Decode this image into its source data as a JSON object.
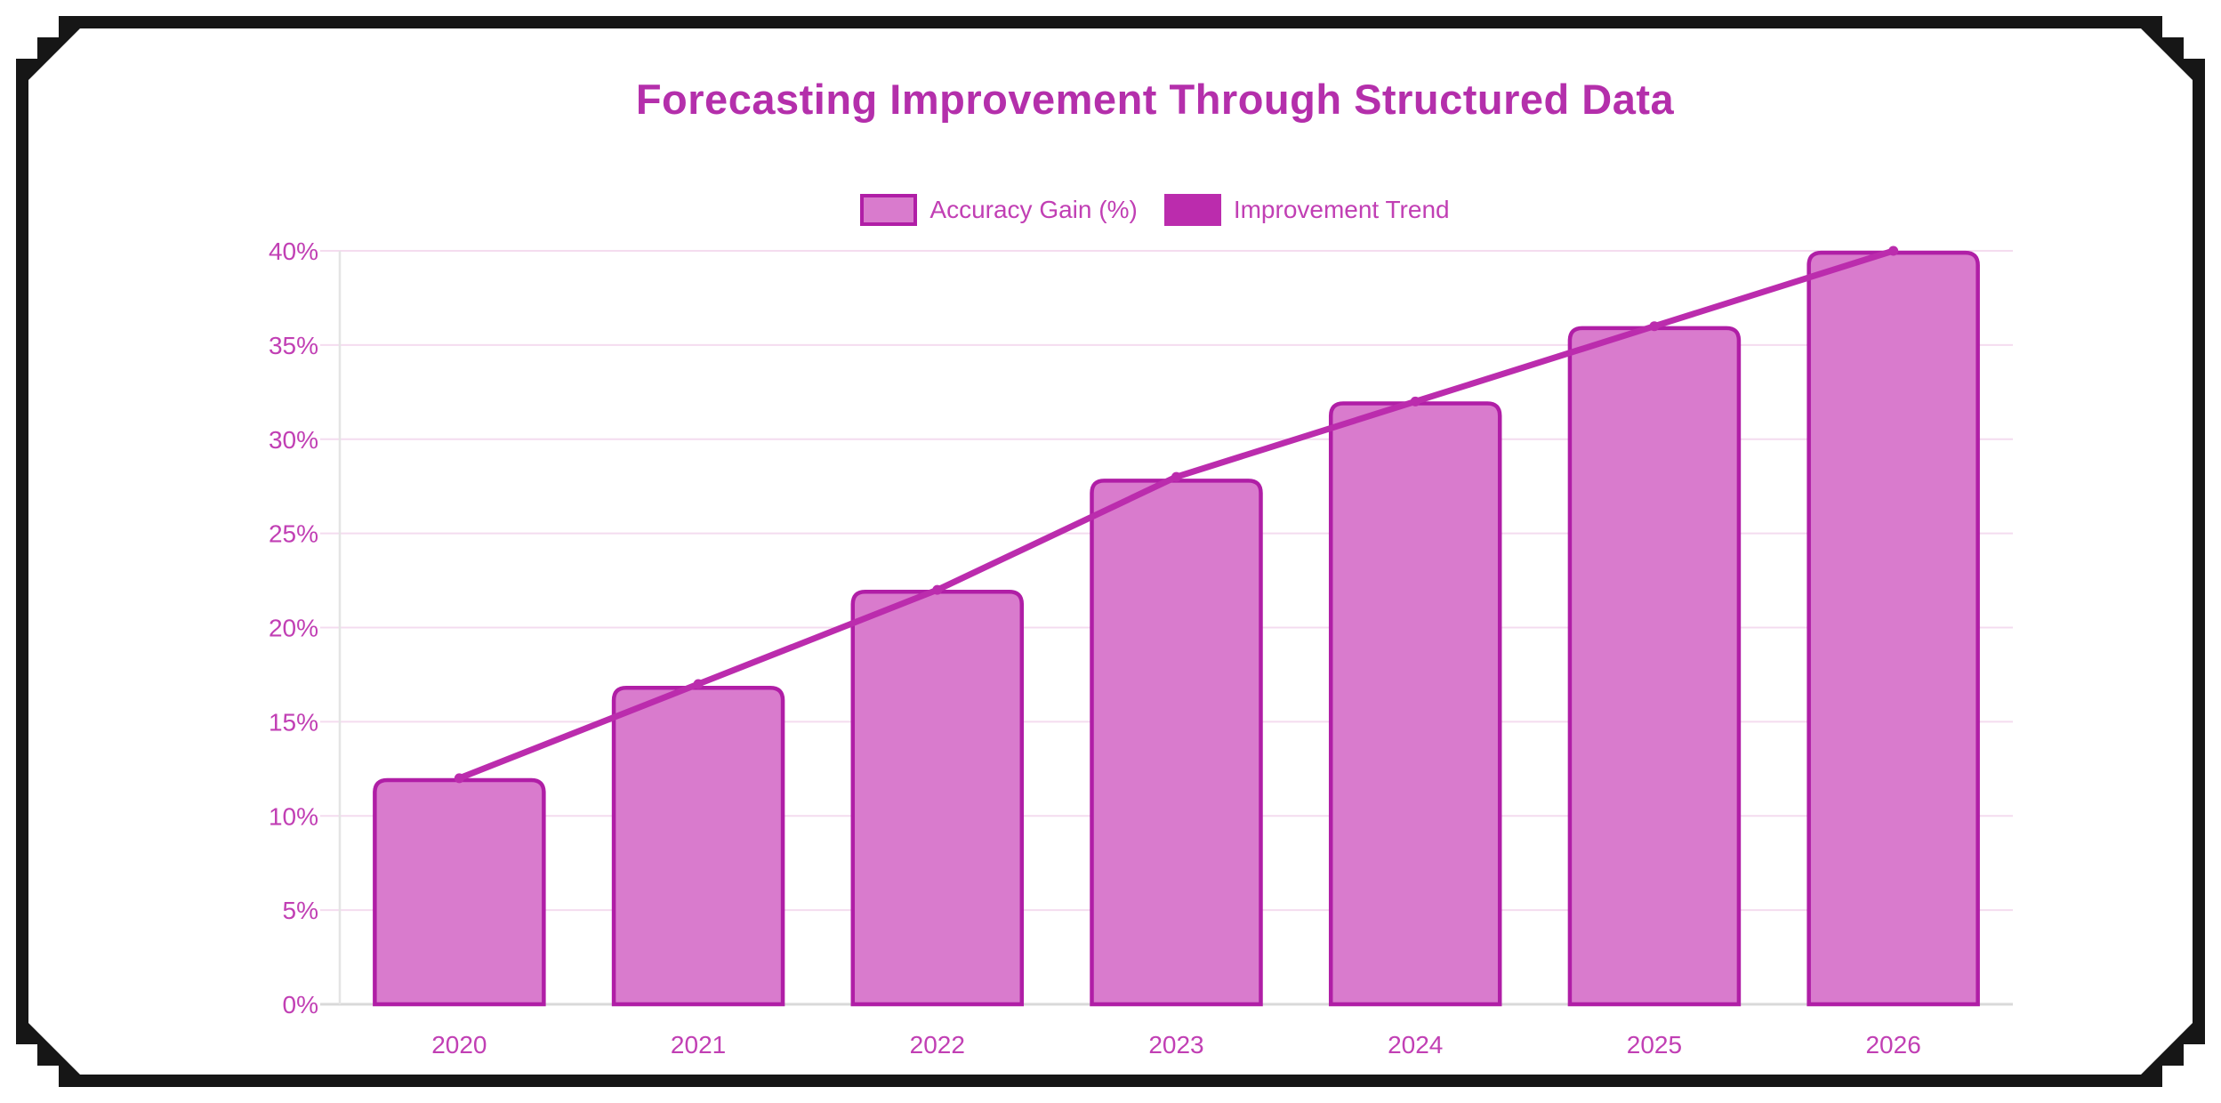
{
  "title": "Forecasting Improvement Through Structured Data",
  "colors": {
    "title_text": "#b42fab",
    "axis_text": "#c13fb4",
    "grid_line": "#f4dcef",
    "axis_line": "#e4e4e4",
    "baseline": "#d9d9d9",
    "bar_fill": "#d97bcd",
    "bar_border": "#b01ea6",
    "trend_line": "#bb2cad",
    "frame": "#161616",
    "background": "#ffffff"
  },
  "chart_data": {
    "type": "bar",
    "title": "Forecasting Improvement Through Structured Data",
    "categories": [
      "2020",
      "2021",
      "2022",
      "2023",
      "2024",
      "2025",
      "2026"
    ],
    "series": [
      {
        "name": "Accuracy Gain (%)",
        "type": "bar",
        "values": [
          11.9,
          16.8,
          21.9,
          27.8,
          31.9,
          35.9,
          39.9
        ]
      },
      {
        "name": "Improvement Trend",
        "type": "line",
        "values": [
          12,
          17,
          22,
          28,
          32,
          36,
          40
        ]
      }
    ],
    "xlabel": "",
    "ylabel": "",
    "ylim": [
      0,
      40
    ],
    "ytick_step": 5,
    "ytick_suffix": "%",
    "ytick_labels": [
      "0%",
      "5%",
      "10%",
      "15%",
      "20%",
      "25%",
      "30%",
      "35%",
      "40%"
    ],
    "grid": true,
    "legend_position": "top"
  }
}
